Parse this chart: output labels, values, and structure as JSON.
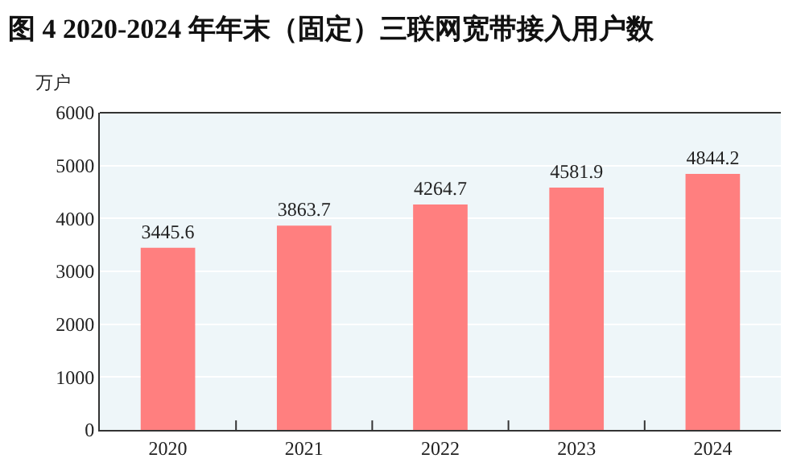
{
  "chart_data": {
    "type": "bar",
    "title": "图 4 2020-2024 年年末（固定）三联网宽带接入用户数",
    "ylabel": "万户",
    "categories": [
      "2020",
      "2021",
      "2022",
      "2023",
      "2024"
    ],
    "values": [
      3445.6,
      3863.7,
      4264.7,
      4581.9,
      4844.2
    ],
    "color": "#ff7f7f",
    "ylim": [
      0,
      6000
    ],
    "yticks": [
      0,
      1000,
      2000,
      3000,
      4000,
      5000,
      6000
    ],
    "grid": "y",
    "data_labels": true
  }
}
